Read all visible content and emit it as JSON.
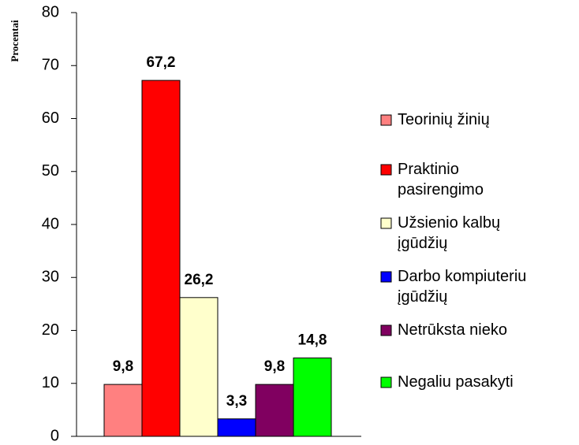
{
  "chart_data": {
    "type": "bar",
    "ylabel": "Procentai",
    "categories": [
      null
    ],
    "series": [
      {
        "name": "Teorinių žinių",
        "color": "#ff8080",
        "values": [
          9.8
        ],
        "value_labels": [
          "9,8"
        ]
      },
      {
        "name": "Praktinio\npasirengimo",
        "color": "#ff0000",
        "values": [
          67.2
        ],
        "value_labels": [
          "67,2"
        ]
      },
      {
        "name": "Užsienio kalbų\nįgūdžių",
        "color": "#ffffcc",
        "values": [
          26.2
        ],
        "value_labels": [
          "26,2"
        ]
      },
      {
        "name": "Darbo kompiuteriu\nįgūdžių",
        "color": "#0000ff",
        "values": [
          3.3
        ],
        "value_labels": [
          "3,3"
        ]
      },
      {
        "name": "Netrūksta nieko",
        "color": "#800060",
        "values": [
          9.8
        ],
        "value_labels": [
          "9,8"
        ]
      },
      {
        "name": "Negaliu pasakyti",
        "color": "#00ff00",
        "values": [
          14.8
        ],
        "value_labels": [
          "14,8"
        ]
      }
    ],
    "ylim": [
      0,
      80
    ],
    "yticks": [
      0,
      10,
      20,
      30,
      40,
      50,
      60,
      70,
      80
    ],
    "grid": false,
    "legend": "right"
  }
}
